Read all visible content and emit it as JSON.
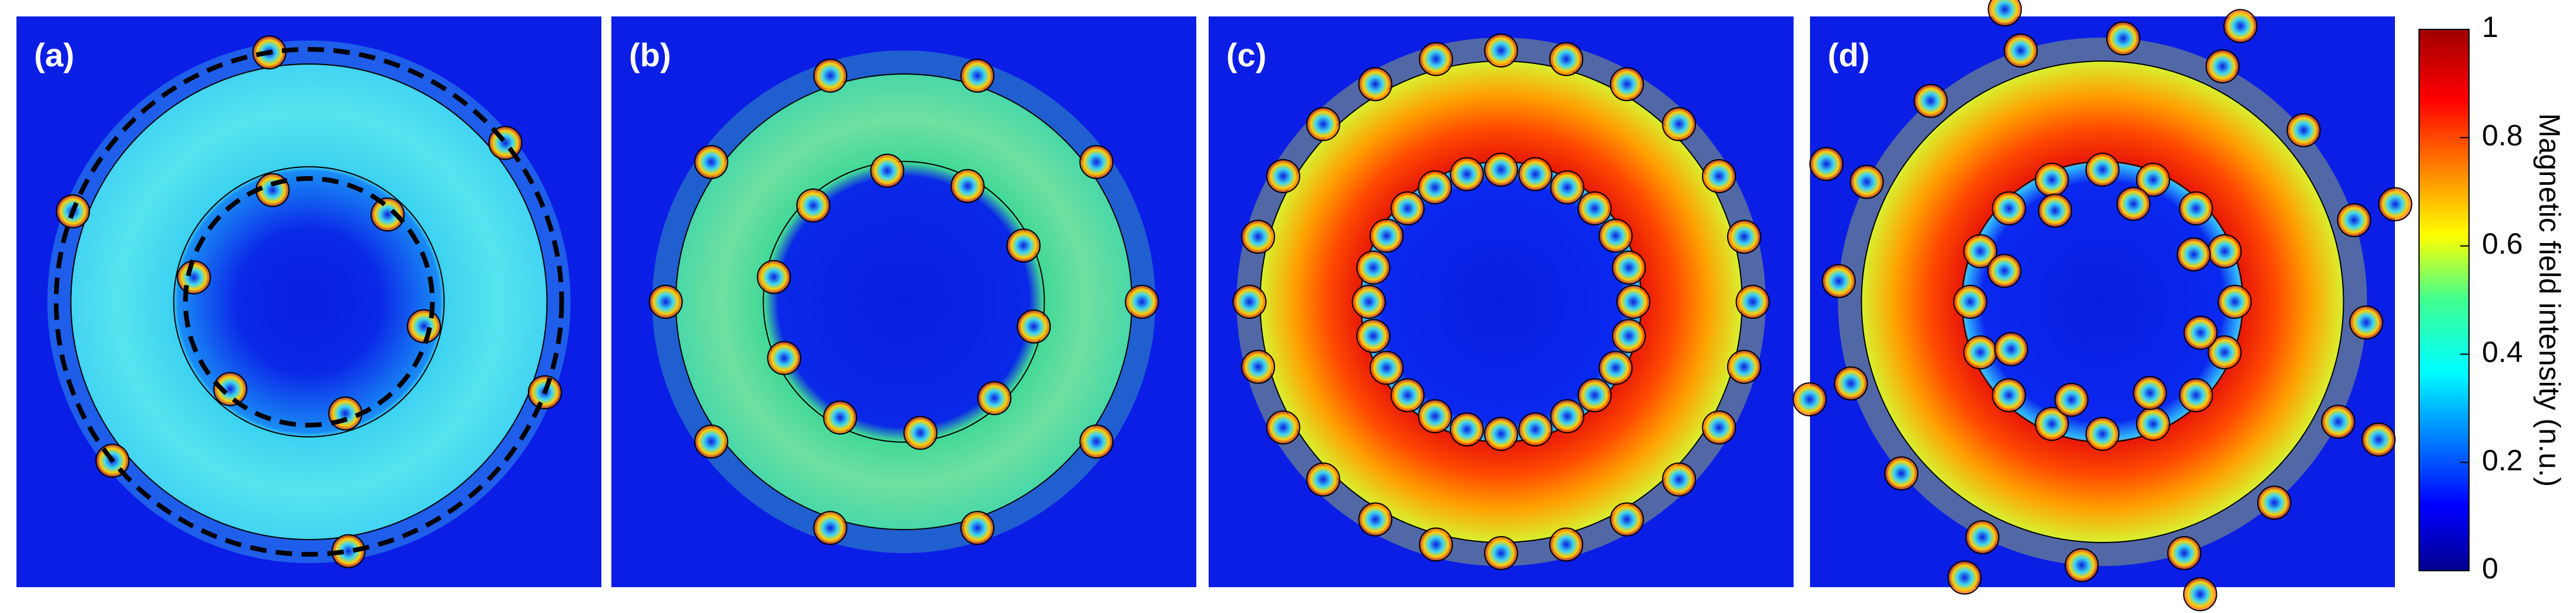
{
  "panels": [
    {
      "label": "(a)"
    },
    {
      "label": "(b)"
    },
    {
      "label": "(c)"
    },
    {
      "label": "(d)"
    }
  ],
  "colorbar": {
    "label": "Magnetic field intensity (n.u.)",
    "lim": [
      0,
      1
    ],
    "ticks": [
      0,
      0.2,
      0.4,
      0.6,
      0.8,
      1
    ]
  }
}
